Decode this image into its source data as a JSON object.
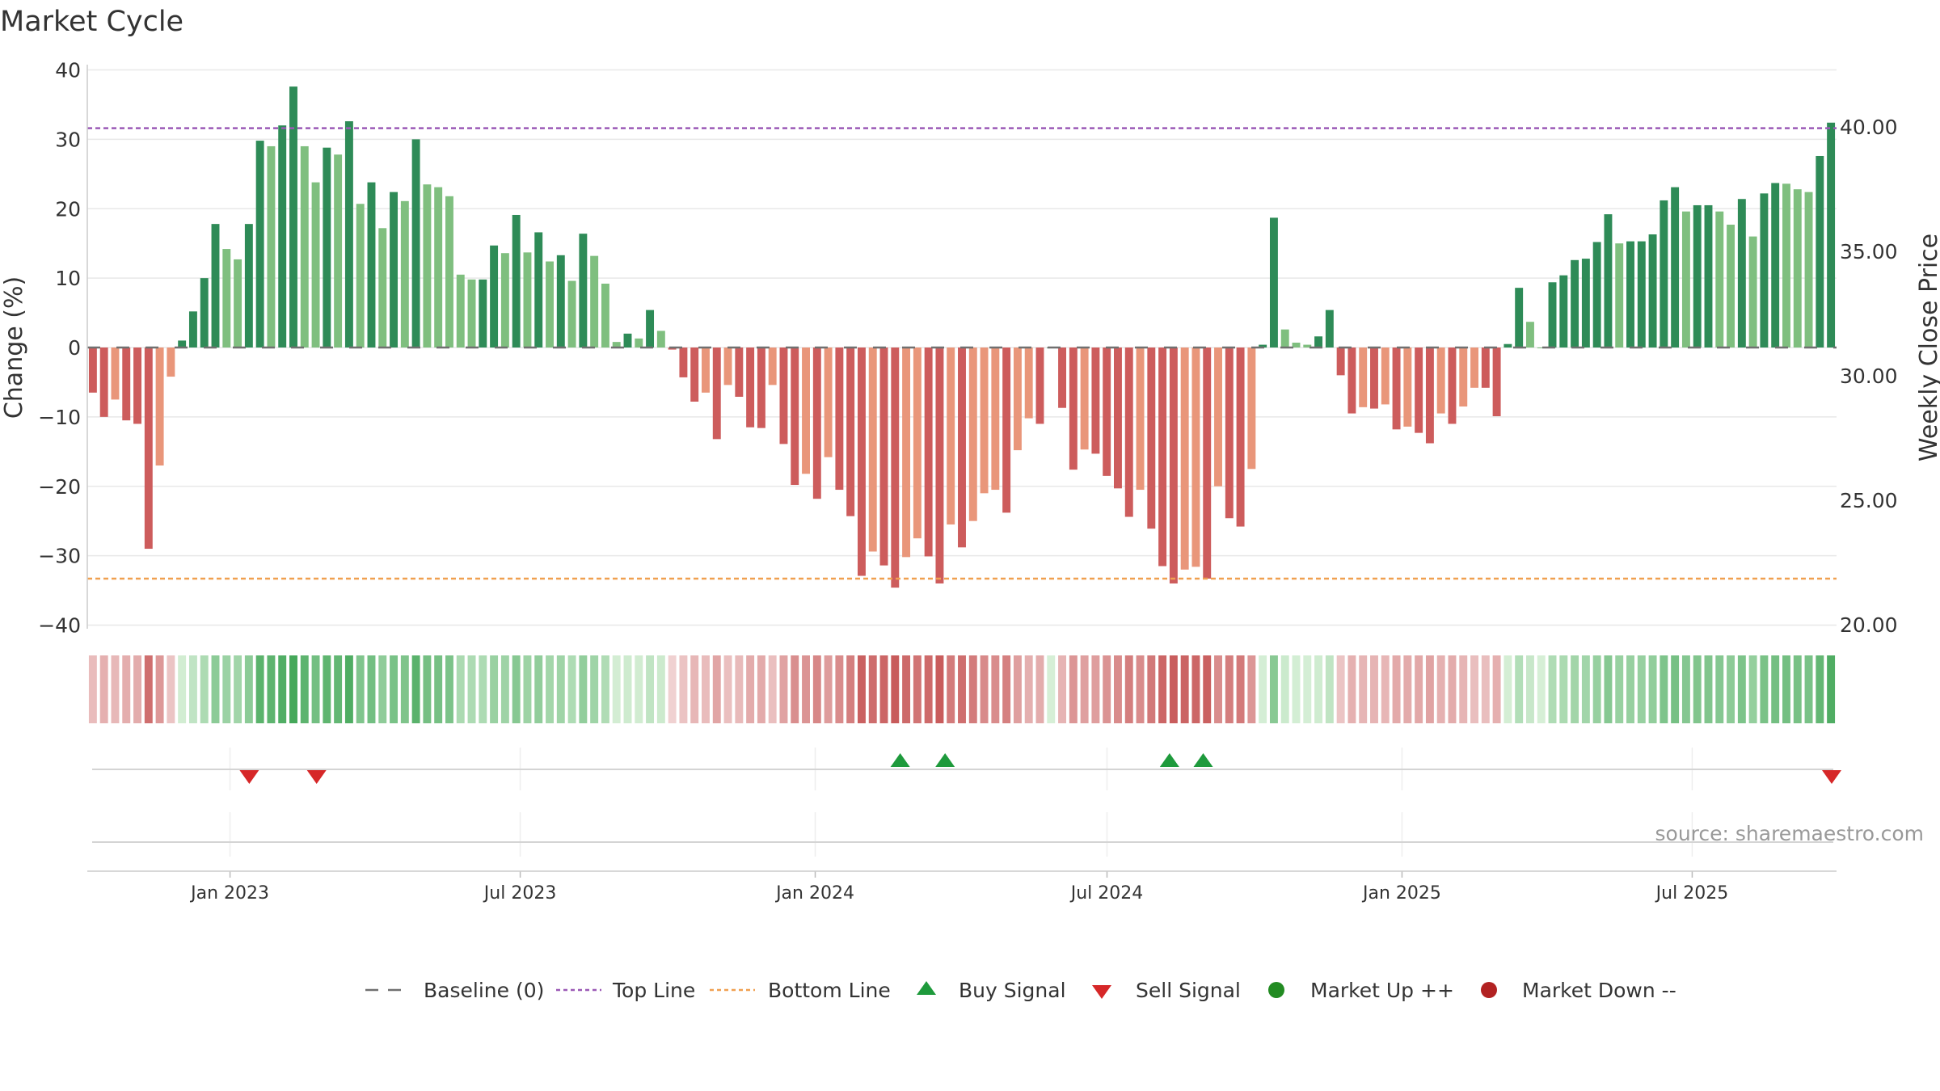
{
  "chart_data": {
    "type": "bar",
    "title": "Market Cycle",
    "ylabel": "Change (%)",
    "y2label": "Weekly Close Price",
    "ylim": [
      -40,
      40
    ],
    "yticks": [
      "40",
      "30",
      "20",
      "10",
      "0",
      "−10",
      "−20",
      "−30",
      "−40"
    ],
    "y2lim": [
      20,
      42.3
    ],
    "y2ticks": [
      "40.00",
      "35.00",
      "30.00",
      "25.00",
      "20.00"
    ],
    "x_start": "2022-10-07",
    "x_end": "2025-09-26",
    "x_ticks": [
      "Jan 2023",
      "Jul 2023",
      "Jan 2024",
      "Jul 2024",
      "Jan 2025",
      "Jul 2025"
    ],
    "top_line": 31.6,
    "bottom_line": -33.3,
    "baseline": 0,
    "values": [
      -6.5,
      -10.0,
      -7.5,
      -10.5,
      -11.0,
      -29.0,
      -17.0,
      -4.2,
      1.0,
      5.2,
      10.0,
      17.8,
      14.2,
      12.7,
      17.8,
      29.8,
      29.0,
      32.0,
      37.6,
      29.0,
      23.8,
      28.8,
      27.8,
      32.6,
      20.7,
      23.8,
      17.2,
      22.4,
      21.1,
      30.0,
      23.5,
      23.1,
      21.8,
      10.5,
      9.8,
      9.8,
      14.7,
      13.6,
      19.1,
      13.7,
      16.6,
      12.4,
      13.3,
      9.6,
      16.4,
      13.2,
      9.2,
      0.8,
      2.0,
      1.3,
      5.4,
      2.4,
      -0.3,
      -4.3,
      -7.8,
      -6.5,
      -13.2,
      -5.4,
      -7.1,
      -11.5,
      -11.6,
      -5.4,
      -13.9,
      -19.8,
      -18.2,
      -21.8,
      -15.8,
      -20.5,
      -24.3,
      -32.9,
      -29.4,
      -31.4,
      -34.6,
      -30.2,
      -27.5,
      -30.1,
      -34.0,
      -25.5,
      -28.8,
      -25.0,
      -21.0,
      -20.5,
      -23.8,
      -14.8,
      -10.2,
      -11.0,
      0,
      -8.7,
      -17.6,
      -14.7,
      -15.3,
      -18.5,
      -20.3,
      -24.4,
      -20.5,
      -26.1,
      -31.5,
      -34.0,
      -32.0,
      -31.6,
      -33.3,
      -20.0,
      -24.6,
      -25.8,
      -17.5,
      0.4,
      18.7,
      2.6,
      0.7,
      0.4,
      1.6,
      5.4,
      -4.0,
      -9.5,
      -8.6,
      -8.8,
      -8.2,
      -11.8,
      -11.4,
      -12.3,
      -13.8,
      -9.5,
      -11.0,
      -8.5,
      -5.8,
      -5.8,
      -9.9,
      0.5,
      8.6,
      3.7,
      0,
      9.4,
      10.4,
      12.6,
      12.8,
      15.2,
      19.2,
      15.0,
      15.3,
      15.3,
      16.3,
      21.2,
      23.1,
      19.6,
      20.5,
      20.5,
      19.6,
      17.7,
      21.4,
      16.0,
      22.2,
      23.7,
      23.6,
      22.8,
      22.4,
      27.6,
      32.4
    ],
    "buy_signals": [
      "2024-02-23",
      "2024-03-22",
      "2024-08-09",
      "2024-08-30"
    ],
    "sell_signals": [
      "2023-01-13",
      "2023-02-24",
      "2025-09-26"
    ],
    "legend": [
      "Baseline (0)",
      "Top Line",
      "Bottom Line",
      "Buy Signal",
      "Sell Signal",
      "Market Up ++",
      "Market Down --"
    ],
    "grid": true,
    "legend_position": "bottom"
  },
  "source": "source: sharemaestro.com",
  "colors": {
    "up_strong": "#2e8b57",
    "up_light": "#7fbf7f",
    "down_strong": "#cd5c5c",
    "down_light": "#e9967a",
    "top_line": "#9b59b6",
    "bottom_line": "#f0a050",
    "buy": "#1e9a3c",
    "sell": "#d62728",
    "market_up": "#228b22",
    "market_down": "#b22222",
    "baseline": "#707070"
  }
}
